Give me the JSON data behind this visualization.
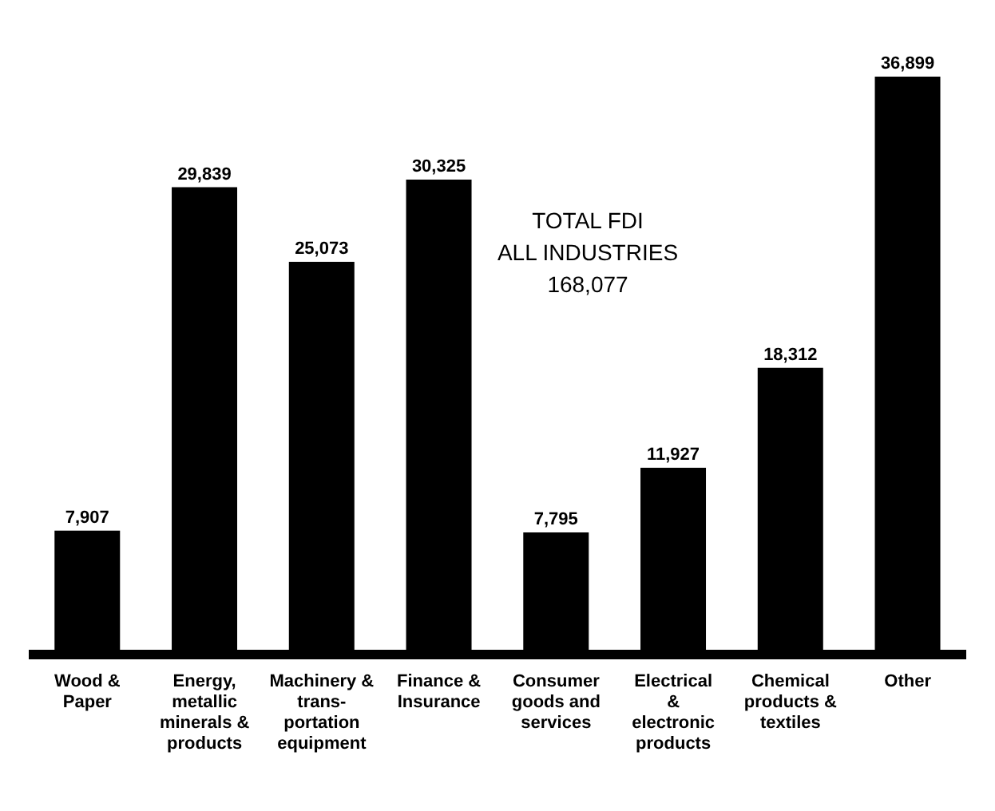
{
  "chart_data": {
    "type": "bar",
    "categories": [
      "Wood & Paper",
      "Energy, metallic minerals & products",
      "Machinery & trans- portation equipment",
      "Finance & Insurance",
      "Consumer goods and services",
      "Electrical & electronic products",
      "Chemical products & textiles",
      "Other"
    ],
    "values": [
      7907,
      29839,
      25073,
      30325,
      7795,
      11927,
      18312,
      36899
    ],
    "value_labels": [
      "7,907",
      "29,839",
      "25,073",
      "30,325",
      "7,795",
      "11,927",
      "18,312",
      "36,899"
    ],
    "color": "#000000",
    "annotations": [
      "TOTAL FDI\nALL INDUSTRIES\n168,077"
    ],
    "grid": false,
    "legend": false
  }
}
